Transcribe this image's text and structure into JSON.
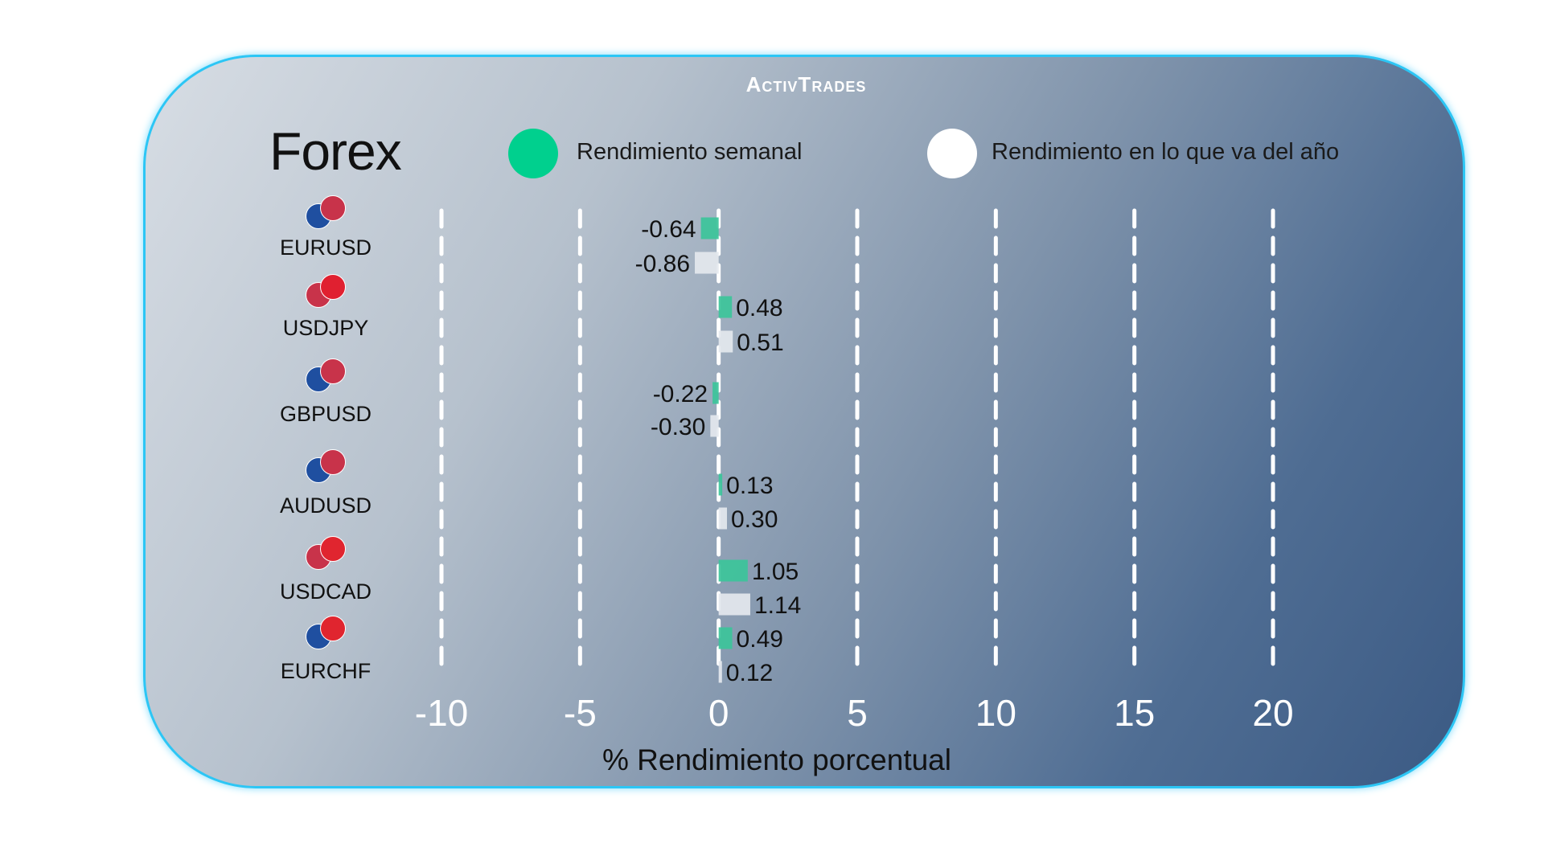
{
  "logo": "ActivTrades",
  "title": "Forex",
  "legend": [
    {
      "label": "Rendimiento semanal",
      "color": "#00d08e"
    },
    {
      "label": "Rendimiento en lo que va del año",
      "color": "#ffffff"
    }
  ],
  "chart_data": {
    "type": "bar",
    "orientation": "horizontal",
    "categories": [
      "EURUSD",
      "USDJPY",
      "GBPUSD",
      "AUDUSD",
      "USDCAD",
      "EURCHF"
    ],
    "series": [
      {
        "name": "Rendimiento semanal",
        "color": "#3cc49a",
        "values": [
          -0.64,
          0.48,
          -0.22,
          0.13,
          1.05,
          0.49
        ],
        "labels": [
          "-0.64",
          "0.48",
          "-0.22",
          "0.13",
          "1.05",
          "0.49"
        ]
      },
      {
        "name": "Rendimiento en lo que va del año",
        "color": "#e4e8ee",
        "values": [
          -0.86,
          0.51,
          -0.3,
          0.3,
          1.14,
          0.12
        ],
        "labels": [
          "-0.86",
          "0.51",
          "-0.30",
          "0.30",
          "1.14",
          "0.12"
        ]
      }
    ],
    "xlabel": "% Rendimiento porcentual",
    "xlim": [
      -10,
      20
    ],
    "xticks": [
      "-10",
      "-5",
      "0",
      "5",
      "10",
      "15",
      "20"
    ],
    "grid": "vertical dashed white"
  }
}
